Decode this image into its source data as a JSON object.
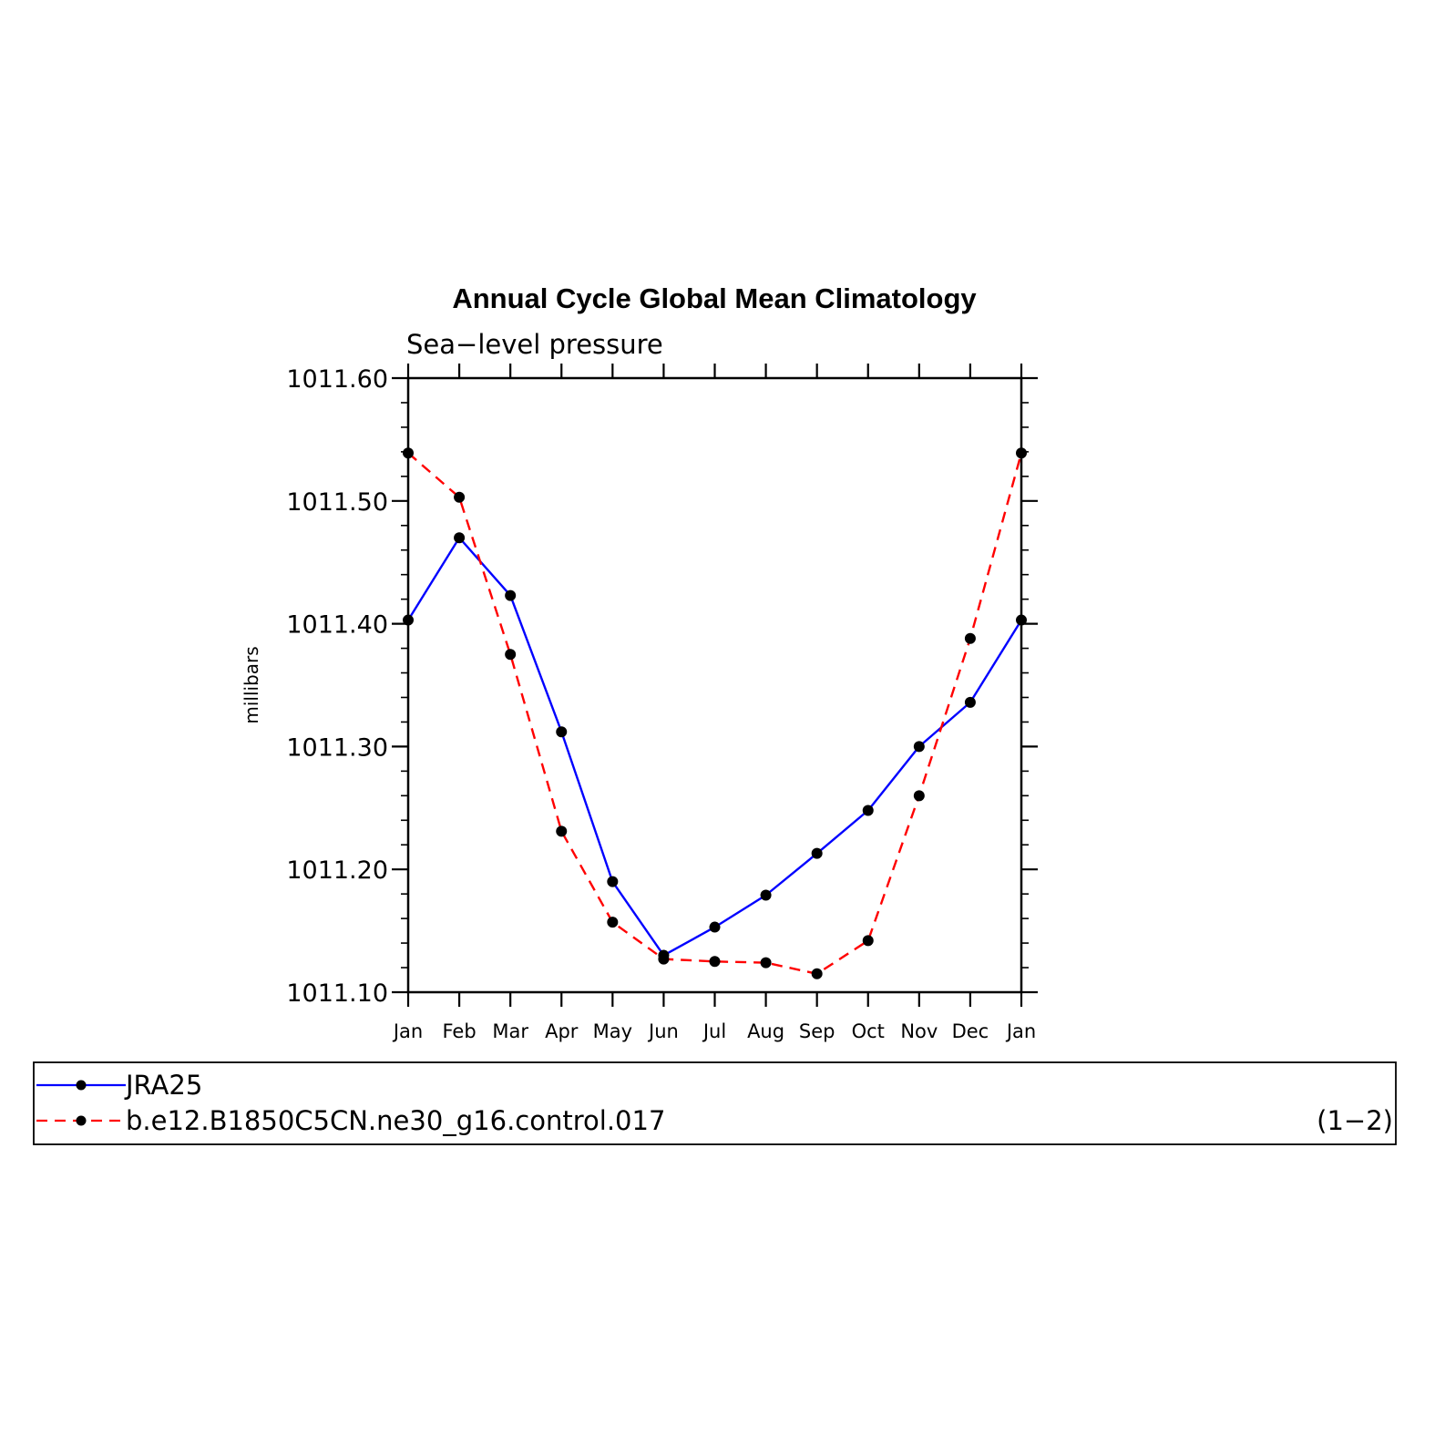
{
  "chart_data": {
    "type": "line",
    "title": "Annual Cycle Global Mean Climatology",
    "subtitle": "Sea−level pressure",
    "ylabel": "millibars",
    "xlabel": "",
    "categories": [
      "Jan",
      "Feb",
      "Mar",
      "Apr",
      "May",
      "Jun",
      "Jul",
      "Aug",
      "Sep",
      "Oct",
      "Nov",
      "Dec",
      "Jan"
    ],
    "ylim": [
      1011.1,
      1011.6
    ],
    "yticks": [
      "1011.10",
      "1011.20",
      "1011.30",
      "1011.40",
      "1011.50",
      "1011.60"
    ],
    "ytick_values": [
      1011.1,
      1011.2,
      1011.3,
      1011.4,
      1011.5,
      1011.6
    ],
    "grid": false,
    "legend_position": "bottom",
    "series": [
      {
        "name": "JRA25",
        "color": "#0000ff",
        "line_style": "solid",
        "values": [
          1011.403,
          1011.47,
          1011.423,
          1011.312,
          1011.19,
          1011.13,
          1011.153,
          1011.179,
          1011.213,
          1011.248,
          1011.3,
          1011.336,
          1011.403
        ]
      },
      {
        "name": "b.e12.B1850C5CN.ne30_g16.control.017",
        "color": "#ff0000",
        "line_style": "dashed",
        "values": [
          1011.539,
          1011.503,
          1011.375,
          1011.231,
          1011.157,
          1011.127,
          1011.125,
          1011.124,
          1011.115,
          1011.142,
          1011.26,
          1011.388,
          1011.539
        ]
      }
    ],
    "legend_note": "(1−2)"
  }
}
